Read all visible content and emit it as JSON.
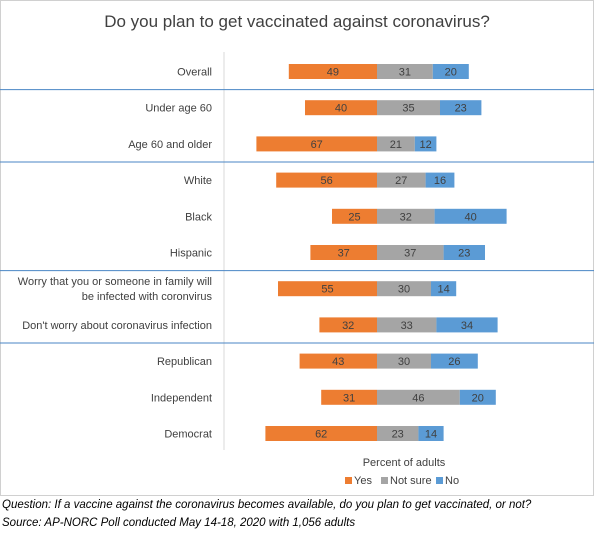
{
  "chart_data": {
    "type": "bar",
    "orientation": "horizontal",
    "stacked": true,
    "title": "Do you plan to get vaccinated against coronavirus?",
    "xlabel": "Percent of adults",
    "ylabel": "",
    "categories": [
      "Overall",
      "Under age 60",
      "Age 60 and older",
      "White",
      "Black",
      "Hispanic",
      [
        "Worry that you or someone in family will",
        "be infected with coronvirus"
      ],
      "Don't worry about coronavirus infection",
      "Republican",
      "Independent",
      "Democrat"
    ],
    "group_separators_after_index": [
      0,
      2,
      5,
      7
    ],
    "series": [
      {
        "name": "Yes",
        "color": "#ed7d31",
        "values": [
          49,
          40,
          67,
          56,
          25,
          37,
          55,
          32,
          43,
          31,
          62
        ]
      },
      {
        "name": "Not sure",
        "color": "#a5a5a5",
        "values": [
          31,
          35,
          21,
          27,
          32,
          37,
          30,
          33,
          30,
          46,
          23
        ]
      },
      {
        "name": "No",
        "color": "#5b9bd5",
        "values": [
          20,
          23,
          12,
          16,
          40,
          23,
          14,
          34,
          26,
          20,
          14
        ]
      }
    ],
    "legend_position": "bottom",
    "grid": false,
    "data_labels": true
  },
  "footnotes": {
    "question": "Question: If a vaccine against the coronavirus becomes available, do you plan to get vaccinated, or not?",
    "source": "Source: AP-NORC Poll conducted May 14-18, 2020 with 1,056 adults"
  },
  "colors": {
    "separator": "#4a86c5",
    "axis_line": "#d9d9d9",
    "text": "#404040"
  }
}
